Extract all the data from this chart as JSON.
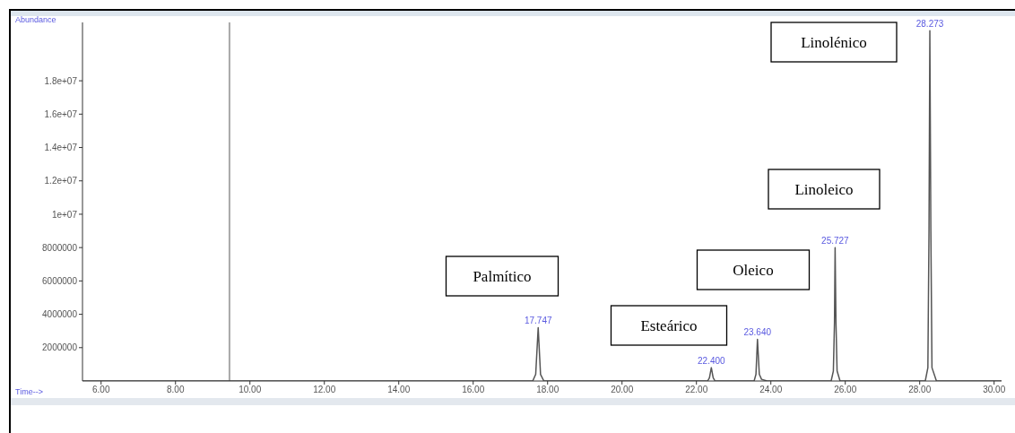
{
  "chart_data": {
    "type": "line",
    "xlabel": "Time-->",
    "ylabel": "Abundance",
    "x": [
      5.5,
      17.6,
      17.68,
      17.747,
      17.81,
      17.9,
      22.3,
      22.35,
      22.4,
      22.45,
      22.5,
      23.55,
      23.6,
      23.64,
      23.69,
      23.75,
      23.9,
      25.62,
      25.68,
      25.71,
      25.727,
      25.75,
      25.78,
      25.86,
      28.15,
      28.22,
      28.25,
      28.273,
      28.3,
      28.33,
      28.45,
      30.2
    ],
    "series": [
      {
        "color": "#555555",
        "values": [
          0,
          0,
          400000,
          3200000,
          400000,
          0,
          0,
          200000,
          800000,
          200000,
          0,
          0,
          400000,
          2500000,
          400000,
          100000,
          0,
          0,
          600000,
          3500000,
          8000000,
          3500000,
          600000,
          0,
          0,
          800000,
          9000000,
          21000000,
          9000000,
          800000,
          0,
          0
        ]
      }
    ],
    "xlim": [
      5.5,
      30.2
    ],
    "xticks": [
      {
        "value": 6,
        "label": "6.00"
      },
      {
        "value": 8,
        "label": "8.00"
      },
      {
        "value": 10,
        "label": "10.00"
      },
      {
        "value": 12,
        "label": "12.00"
      },
      {
        "value": 14,
        "label": "14.00"
      },
      {
        "value": 16,
        "label": "16.00"
      },
      {
        "value": 18,
        "label": "18.00"
      },
      {
        "value": 20,
        "label": "20.00"
      },
      {
        "value": 22,
        "label": "22.00"
      },
      {
        "value": 24,
        "label": "24.00"
      },
      {
        "value": 26,
        "label": "26.00"
      },
      {
        "value": 28,
        "label": "28.00"
      },
      {
        "value": 30,
        "label": "30.00"
      }
    ],
    "ylim": [
      0,
      21500000
    ],
    "yticks": [
      2000000,
      4000000,
      6000000,
      8000000,
      {
        "value": 10000000,
        "label": "1e+07"
      },
      {
        "value": 12000000,
        "label": "1.2e+07"
      },
      {
        "value": 14000000,
        "label": "1.4e+07"
      },
      {
        "value": 16000000,
        "label": "1.6e+07"
      },
      {
        "value": 18000000,
        "label": "1.8e+07"
      }
    ],
    "ref_lines": [
      {
        "axis": "x",
        "value": 9.45,
        "color": "#a8a8a8"
      }
    ],
    "annotations": [
      {
        "text": "17.747",
        "x": 17.747,
        "y": 3200000
      },
      {
        "text": "22.400",
        "x": 22.4,
        "y": 800000
      },
      {
        "text": "23.640",
        "x": 23.64,
        "y": 2500000
      },
      {
        "text": "25.727",
        "x": 25.727,
        "y": 8000000
      },
      {
        "text": "28.273",
        "x": 28.273,
        "y": 21000000
      },
      "Palmítico",
      "Esteárico",
      "Oleico",
      "Linoleico",
      "Linolénico"
    ]
  }
}
